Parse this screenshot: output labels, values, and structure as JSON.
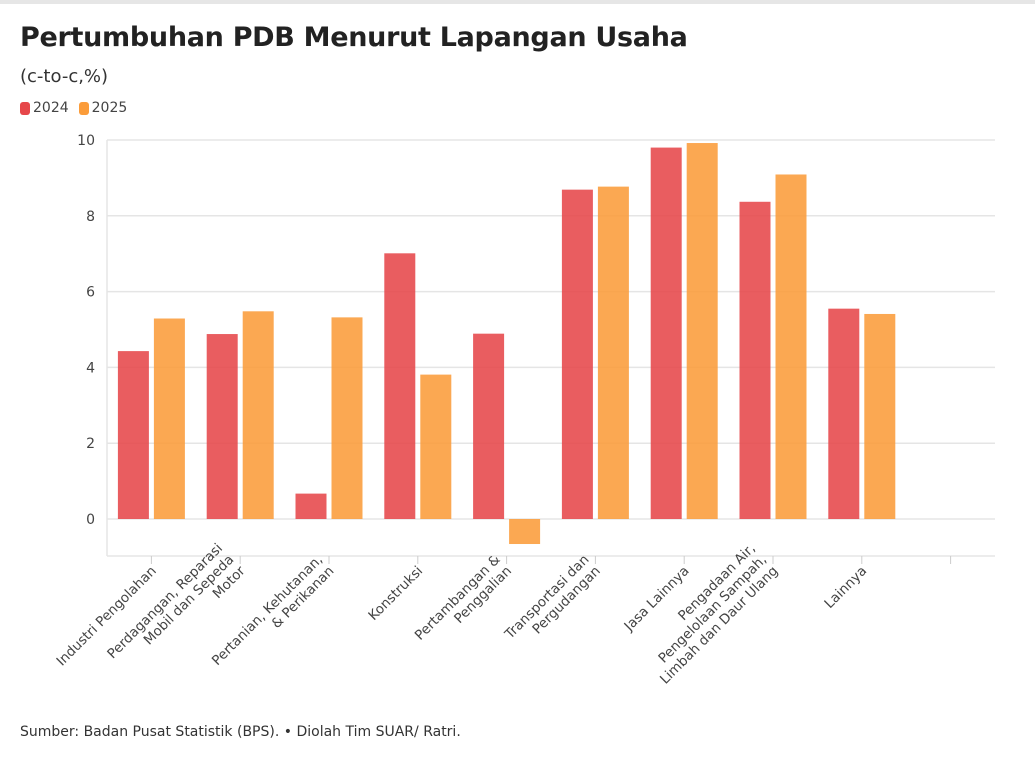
{
  "title": "Pertumbuhan PDB Menurut Lapangan Usaha",
  "subtitle": "(c-to-c,%)",
  "source": "Sumber: Badan Pusat Statistik (BPS). • Diolah Tim SUAR/ Ratri.",
  "colors": {
    "series_2024": "#e6474a",
    "series_2025": "#fb9c3a",
    "grid": "#e5e5e5",
    "axis_text": "#444444"
  },
  "chart_data": {
    "type": "bar",
    "title": "Pertumbuhan PDB Menurut Lapangan Usaha",
    "subtitle": "(c-to-c,%)",
    "xlabel": "",
    "ylabel": "",
    "ylim": [
      -1,
      10
    ],
    "yticks": [
      0,
      2,
      4,
      6,
      8,
      10
    ],
    "grid": true,
    "legend": "top-left",
    "categories": [
      [
        "Industri Pengolahan"
      ],
      [
        "Perdagangan, Reparasi",
        "Mobil dan Sepeda",
        "Motor"
      ],
      [
        "Pertanian, Kehutanan,",
        "& Perikanan"
      ],
      [
        "Konstruksi"
      ],
      [
        "Pertambangan &",
        "Penggalian"
      ],
      [
        "Transportasi dan",
        "Pergudangan"
      ],
      [
        "Jasa Lainnya"
      ],
      [
        "Pengadaan Air,",
        "Pengelolaan Sampah,",
        "Limbah dan Daur Ulang"
      ],
      [
        "Lainnya"
      ]
    ],
    "series": [
      {
        "name": "2024",
        "values": [
          4.43,
          4.88,
          0.67,
          7.01,
          4.89,
          8.69,
          9.8,
          8.37,
          5.55
        ]
      },
      {
        "name": "2025",
        "values": [
          5.29,
          5.48,
          5.32,
          3.81,
          -0.66,
          8.77,
          9.92,
          9.09,
          5.41
        ]
      }
    ]
  }
}
